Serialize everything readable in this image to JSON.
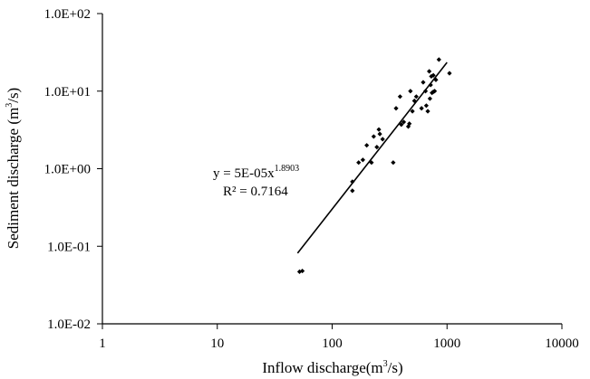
{
  "chart_data": {
    "type": "scatter",
    "x_scale": "log",
    "y_scale": "log",
    "xlim": [
      1,
      10000
    ],
    "ylim": [
      0.01,
      100
    ],
    "x_ticks": [
      "1",
      "10",
      "100",
      "1000",
      "10000"
    ],
    "y_ticks": [
      "1.0E-02",
      "1.0E-01",
      "1.0E+00",
      "1.0E+01",
      "1.0E+02"
    ],
    "xlabel": {
      "main": "Inflow discharge(m",
      "sup": "3",
      "tail": "/s)"
    },
    "ylabel": {
      "main": "Sediment discharge (m",
      "sup": "3",
      "tail": "/s)"
    },
    "grid": false,
    "legend": "none",
    "points": [
      [
        52,
        0.047
      ],
      [
        55,
        0.048
      ],
      [
        150,
        0.52
      ],
      [
        150,
        0.68
      ],
      [
        170,
        1.2
      ],
      [
        185,
        1.3
      ],
      [
        200,
        2.0
      ],
      [
        220,
        1.2
      ],
      [
        230,
        2.6
      ],
      [
        245,
        1.9
      ],
      [
        255,
        3.2
      ],
      [
        260,
        2.8
      ],
      [
        275,
        2.4
      ],
      [
        340,
        1.2
      ],
      [
        360,
        6.0
      ],
      [
        390,
        8.5
      ],
      [
        400,
        3.7
      ],
      [
        420,
        4.0
      ],
      [
        460,
        3.5
      ],
      [
        470,
        3.8
      ],
      [
        480,
        10.0
      ],
      [
        500,
        5.5
      ],
      [
        520,
        7.5
      ],
      [
        540,
        8.5
      ],
      [
        600,
        6.0
      ],
      [
        620,
        13.0
      ],
      [
        650,
        10.0
      ],
      [
        660,
        6.5
      ],
      [
        680,
        5.5
      ],
      [
        700,
        18.0
      ],
      [
        710,
        8.0
      ],
      [
        720,
        12.0
      ],
      [
        730,
        15.5
      ],
      [
        740,
        9.5
      ],
      [
        760,
        9.8
      ],
      [
        780,
        10.0
      ],
      [
        760,
        16.0
      ],
      [
        800,
        14.0
      ],
      [
        850,
        25.5
      ],
      [
        1050,
        17.0
      ]
    ],
    "trendline": {
      "type": "power",
      "a": 5e-05,
      "b": 1.8903,
      "x_range": [
        50,
        1000
      ],
      "equation_main": "y = 5E-05x",
      "equation_exp": "1.8903",
      "r2_text": "R² = 0.7164"
    }
  }
}
